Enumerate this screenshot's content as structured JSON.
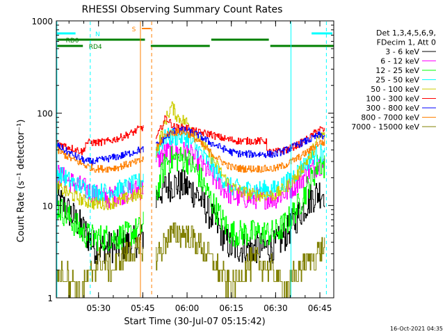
{
  "chart_data": {
    "type": "line",
    "title": "RHESSI Observing Summary Count Rates",
    "xlabel": "Start Time (30-Jul-07 05:15:42)",
    "ylabel": "Count Rate (s⁻¹ detector⁻¹)",
    "yscale": "log",
    "ylim": [
      1,
      1000
    ],
    "xlim_min": [
      0,
      94
    ],
    "x_ticks": [
      {
        "t": 14.3,
        "label": "05:30"
      },
      {
        "t": 29.3,
        "label": "05:45"
      },
      {
        "t": 44.3,
        "label": "06:00"
      },
      {
        "t": 59.3,
        "label": "06:15"
      },
      {
        "t": 74.3,
        "label": "06:30"
      },
      {
        "t": 89.3,
        "label": "06:45"
      }
    ],
    "y_ticks": [
      {
        "v": 1,
        "label": "1"
      },
      {
        "v": 10,
        "label": "10"
      },
      {
        "v": 100,
        "label": "100"
      },
      {
        "v": 1000,
        "label": "1000"
      }
    ],
    "legend_header": [
      "Det 1,3,4,5,6,9,",
      "FDecim 1, Att 0"
    ],
    "legend_position": "right",
    "series": [
      {
        "name": "3 - 6 keV",
        "color": "#000000",
        "points": [
          [
            0,
            12
          ],
          [
            5,
            8
          ],
          [
            10,
            5
          ],
          [
            13,
            3.5
          ],
          [
            16,
            3.5
          ],
          [
            20,
            3.6
          ],
          [
            24,
            3.8
          ],
          [
            28,
            4.2
          ],
          [
            29,
            4.4
          ],
          [
            34,
            13
          ],
          [
            37,
            16
          ],
          [
            40,
            17
          ],
          [
            44,
            16
          ],
          [
            48,
            13
          ],
          [
            52,
            8
          ],
          [
            56,
            5
          ],
          [
            59,
            3.5
          ],
          [
            63,
            3.5
          ],
          [
            67,
            3.5
          ],
          [
            71,
            3.5
          ],
          [
            74,
            3.6
          ],
          [
            78,
            5
          ],
          [
            82,
            8
          ],
          [
            86,
            12
          ],
          [
            89,
            14
          ],
          [
            91,
            14
          ]
        ]
      },
      {
        "name": "6 - 12 keV",
        "color": "#ff00ff",
        "points": [
          [
            0,
            22
          ],
          [
            5,
            18
          ],
          [
            10,
            15
          ],
          [
            13,
            13
          ],
          [
            17,
            12
          ],
          [
            21,
            13
          ],
          [
            24,
            14
          ],
          [
            28,
            15
          ],
          [
            29,
            15
          ],
          [
            34,
            30
          ],
          [
            37,
            38
          ],
          [
            40,
            38
          ],
          [
            44,
            38
          ],
          [
            48,
            30
          ],
          [
            52,
            22
          ],
          [
            56,
            16
          ],
          [
            59,
            13
          ],
          [
            63,
            12
          ],
          [
            67,
            12
          ],
          [
            71,
            12
          ],
          [
            74,
            12
          ],
          [
            78,
            14
          ],
          [
            82,
            18
          ],
          [
            86,
            24
          ],
          [
            89,
            28
          ],
          [
            91,
            26
          ]
        ]
      },
      {
        "name": "12 - 25 keV",
        "color": "#00ff00",
        "points": [
          [
            0,
            10
          ],
          [
            5,
            7
          ],
          [
            9,
            5
          ],
          [
            12,
            4.5
          ],
          [
            16,
            4.5
          ],
          [
            20,
            4.5
          ],
          [
            24,
            4.8
          ],
          [
            28,
            5.5
          ],
          [
            29,
            5.7
          ],
          [
            34,
            14
          ],
          [
            37,
            30
          ],
          [
            40,
            32
          ],
          [
            44,
            32
          ],
          [
            48,
            22
          ],
          [
            52,
            12
          ],
          [
            56,
            7
          ],
          [
            59,
            5
          ],
          [
            63,
            5
          ],
          [
            67,
            5
          ],
          [
            71,
            5
          ],
          [
            74,
            5
          ],
          [
            78,
            6.5
          ],
          [
            82,
            10
          ],
          [
            86,
            18
          ],
          [
            89,
            30
          ],
          [
            91,
            26
          ]
        ]
      },
      {
        "name": "25 - 50 keV",
        "color": "#00ffff",
        "points": [
          [
            0,
            23
          ],
          [
            5,
            18
          ],
          [
            10,
            15
          ],
          [
            13,
            14
          ],
          [
            17,
            14
          ],
          [
            21,
            15
          ],
          [
            24,
            16
          ],
          [
            28,
            18
          ],
          [
            29,
            19
          ],
          [
            34,
            40
          ],
          [
            37,
            55
          ],
          [
            40,
            55
          ],
          [
            44,
            55
          ],
          [
            48,
            40
          ],
          [
            52,
            28
          ],
          [
            56,
            20
          ],
          [
            59,
            16
          ],
          [
            63,
            15
          ],
          [
            67,
            15
          ],
          [
            71,
            15
          ],
          [
            74,
            15
          ],
          [
            78,
            18
          ],
          [
            82,
            24
          ],
          [
            86,
            32
          ],
          [
            89,
            38
          ],
          [
            91,
            35
          ]
        ]
      },
      {
        "name": "50 - 100 keV",
        "color": "#cccc00",
        "points": [
          [
            0,
            16
          ],
          [
            5,
            13
          ],
          [
            10,
            11
          ],
          [
            13,
            10.5
          ],
          [
            17,
            10.5
          ],
          [
            21,
            11
          ],
          [
            24,
            12
          ],
          [
            28,
            13
          ],
          [
            29,
            14
          ],
          [
            34,
            40
          ],
          [
            37,
            85
          ],
          [
            39,
            120
          ],
          [
            41,
            90
          ],
          [
            44,
            80
          ],
          [
            48,
            55
          ],
          [
            52,
            35
          ],
          [
            56,
            22
          ],
          [
            59,
            16
          ],
          [
            63,
            14
          ],
          [
            67,
            13
          ],
          [
            71,
            13
          ],
          [
            74,
            13
          ],
          [
            78,
            16
          ],
          [
            82,
            22
          ],
          [
            86,
            35
          ],
          [
            89,
            55
          ],
          [
            91,
            58
          ]
        ]
      },
      {
        "name": "100 - 300 keV",
        "color": "#ff0000",
        "points": [
          [
            0,
            48
          ],
          [
            5,
            42
          ],
          [
            9,
            38
          ],
          [
            10,
            48
          ],
          [
            14,
            48
          ],
          [
            18,
            50
          ],
          [
            22,
            55
          ],
          [
            26,
            62
          ],
          [
            28,
            68
          ],
          [
            29,
            70
          ],
          [
            34,
            55
          ],
          [
            37,
            90
          ],
          [
            40,
            70
          ],
          [
            44,
            70
          ],
          [
            48,
            62
          ],
          [
            51,
            60
          ],
          [
            52,
            60
          ],
          [
            54,
            56
          ],
          [
            58,
            52
          ],
          [
            62,
            50
          ],
          [
            66,
            50
          ],
          [
            70,
            50
          ],
          [
            71,
            50
          ],
          [
            71.5,
            38
          ],
          [
            74,
            38
          ],
          [
            78,
            40
          ],
          [
            82,
            46
          ],
          [
            86,
            55
          ],
          [
            89,
            68
          ],
          [
            91,
            64
          ]
        ]
      },
      {
        "name": "300 - 800 keV",
        "color": "#0000ff",
        "points": [
          [
            0,
            45
          ],
          [
            5,
            36
          ],
          [
            10,
            30
          ],
          [
            13,
            30
          ],
          [
            17,
            32
          ],
          [
            21,
            34
          ],
          [
            24,
            36
          ],
          [
            28,
            40
          ],
          [
            29,
            40
          ],
          [
            34,
            45
          ],
          [
            37,
            55
          ],
          [
            40,
            65
          ],
          [
            44,
            65
          ],
          [
            48,
            58
          ],
          [
            52,
            48
          ],
          [
            56,
            42
          ],
          [
            59,
            38
          ],
          [
            63,
            36
          ],
          [
            67,
            36
          ],
          [
            71,
            36
          ],
          [
            74,
            36
          ],
          [
            78,
            40
          ],
          [
            82,
            46
          ],
          [
            86,
            52
          ],
          [
            89,
            58
          ],
          [
            91,
            56
          ]
        ]
      },
      {
        "name": "800 - 7000 keV",
        "color": "#ff8000",
        "points": [
          [
            0,
            40
          ],
          [
            5,
            32
          ],
          [
            10,
            27
          ],
          [
            13,
            25
          ],
          [
            17,
            25
          ],
          [
            21,
            26
          ],
          [
            24,
            28
          ],
          [
            28,
            30
          ],
          [
            29,
            31
          ],
          [
            34,
            42
          ],
          [
            37,
            60
          ],
          [
            40,
            62
          ],
          [
            44,
            62
          ],
          [
            48,
            50
          ],
          [
            52,
            38
          ],
          [
            56,
            30
          ],
          [
            59,
            26
          ],
          [
            63,
            25
          ],
          [
            67,
            25
          ],
          [
            71,
            25
          ],
          [
            74,
            25
          ],
          [
            78,
            28
          ],
          [
            82,
            33
          ],
          [
            86,
            40
          ],
          [
            89,
            48
          ],
          [
            91,
            48
          ]
        ]
      },
      {
        "name": "7000 - 15000 keV",
        "color": "#808000",
        "points": [
          [
            0,
            1.8
          ],
          [
            3,
            1.8
          ],
          [
            5,
            1.5
          ],
          [
            8,
            1.2
          ],
          [
            11,
            1.6
          ],
          [
            13,
            2.2
          ],
          [
            15,
            2.5
          ],
          [
            17,
            2.2
          ],
          [
            19,
            2
          ],
          [
            21,
            2.5
          ],
          [
            24,
            3
          ],
          [
            27,
            3.2
          ],
          [
            29,
            3.2
          ],
          [
            33,
            2.5
          ],
          [
            35,
            3.2
          ],
          [
            37,
            4.2
          ],
          [
            40,
            5
          ],
          [
            43,
            5
          ],
          [
            46,
            4.3
          ],
          [
            49,
            3.6
          ],
          [
            51,
            3
          ],
          [
            53,
            2.5
          ],
          [
            55,
            2
          ],
          [
            57,
            1.6
          ],
          [
            59,
            1.3
          ],
          [
            61,
            1.5
          ],
          [
            63,
            2
          ],
          [
            65,
            2.3
          ],
          [
            68,
            2.4
          ],
          [
            71,
            2.2
          ],
          [
            73,
            2
          ],
          [
            75,
            1.6
          ],
          [
            77,
            1.3
          ],
          [
            79,
            1.4
          ],
          [
            81,
            1.8
          ],
          [
            83,
            2.2
          ],
          [
            86,
            2.5
          ],
          [
            88,
            3
          ],
          [
            91,
            3.5
          ]
        ]
      }
    ],
    "annotations": {
      "flag_labels": [
        "N",
        "S",
        "RD0",
        "RD4"
      ],
      "timestamp": "16-Oct-2021 04:35"
    }
  }
}
